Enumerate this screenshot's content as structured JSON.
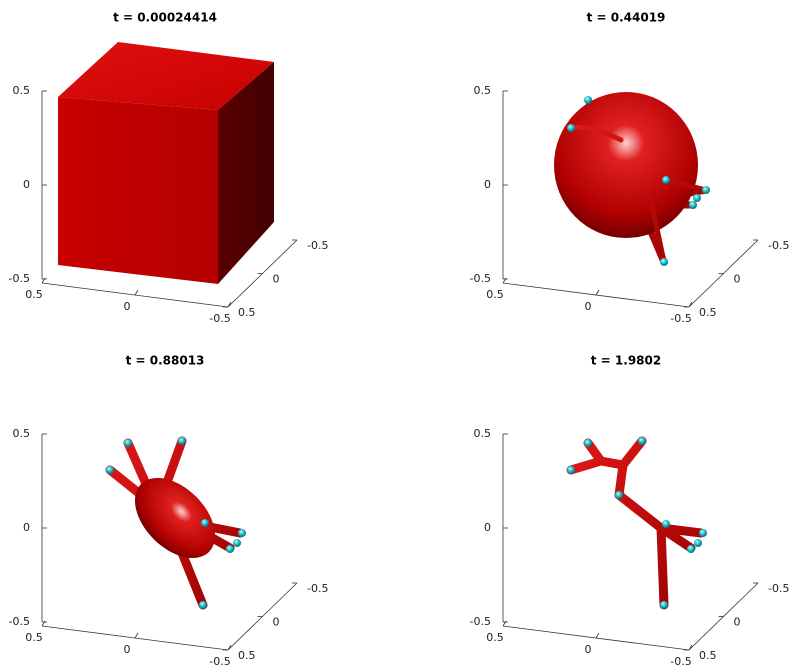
{
  "chart_data": [
    {
      "type": "surface3d",
      "title": "t = 0.00024414",
      "xlim": [
        -0.5,
        0.5
      ],
      "ylim": [
        -0.5,
        0.5
      ],
      "zlim": [
        -0.5,
        0.5
      ],
      "xticks": [
        -0.5,
        0,
        0.5
      ],
      "yticks": [
        -0.5,
        0,
        0.5
      ],
      "zticks": [
        -0.5,
        0,
        0.5
      ]
    },
    {
      "type": "surface3d",
      "title": "t = 0.44019",
      "xlim": [
        -0.5,
        0.5
      ],
      "ylim": [
        -0.5,
        0.5
      ],
      "zlim": [
        -0.5,
        0.5
      ],
      "xticks": [
        -0.5,
        0,
        0.5
      ],
      "yticks": [
        -0.5,
        0,
        0.5
      ],
      "zticks": [
        -0.5,
        0,
        0.5
      ]
    },
    {
      "type": "surface3d",
      "title": "t = 0.88013",
      "xlim": [
        -0.5,
        0.5
      ],
      "ylim": [
        -0.5,
        0.5
      ],
      "zlim": [
        -0.5,
        0.5
      ],
      "xticks": [
        -0.5,
        0,
        0.5
      ],
      "yticks": [
        -0.5,
        0,
        0.5
      ],
      "zticks": [
        -0.5,
        0,
        0.5
      ]
    },
    {
      "type": "surface3d",
      "title": "t = 1.9802",
      "xlim": [
        -0.5,
        0.5
      ],
      "ylim": [
        -0.5,
        0.5
      ],
      "zlim": [
        -0.5,
        0.5
      ],
      "xticks": [
        -0.5,
        0,
        0.5
      ],
      "yticks": [
        -0.5,
        0,
        0.5
      ],
      "zticks": [
        -0.5,
        0,
        0.5
      ]
    }
  ]
}
